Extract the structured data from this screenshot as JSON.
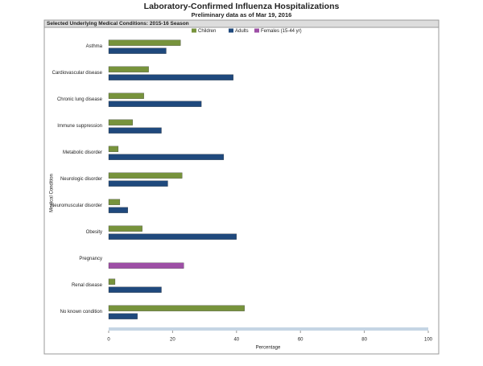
{
  "chart_data": {
    "type": "hbar",
    "title": "Laboratory-Confirmed Influenza Hospitalizations",
    "subtitle": "Preliminary data as of Mar 19, 2016",
    "panel_title": "Selected Underlying Medical Conditions: 2015-16 Season",
    "x_label": "Percentage",
    "y_label": "Medical Condition",
    "categories": [
      "Asthma",
      "Cardiovascular disease",
      "Chronic lung disease",
      "Immune suppression",
      "Metabolic disorder",
      "Neurologic disorder",
      "Neuromuscular disorder",
      "Obesity",
      "Pregnancy",
      "Renal disease",
      "No known condition"
    ],
    "series": [
      {
        "name": "Children",
        "color": "#77933c",
        "values": [
          22.5,
          12.5,
          11,
          7.5,
          3,
          23,
          3.5,
          10.5,
          null,
          2,
          42.5
        ]
      },
      {
        "name": "Adults",
        "color": "#1f497d",
        "values": [
          18,
          39,
          29,
          16.5,
          36,
          18.5,
          6,
          40,
          null,
          16.5,
          9
        ]
      },
      {
        "name": "Females (15-44 yr)",
        "color": "#9e4fa6",
        "values": [
          null,
          null,
          null,
          null,
          null,
          null,
          null,
          null,
          23.5,
          null,
          null
        ]
      }
    ],
    "xlim": [
      0,
      100
    ],
    "xticks": [
      0,
      20,
      40,
      60,
      80,
      100
    ]
  }
}
